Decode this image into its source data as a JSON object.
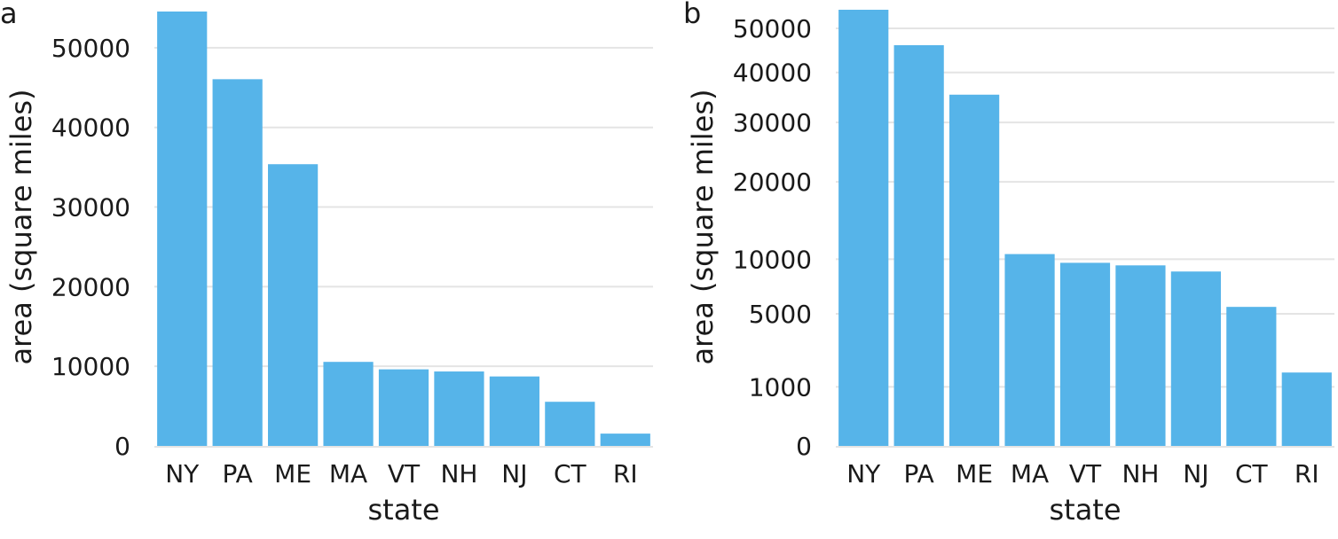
{
  "chart_data": [
    {
      "type": "bar",
      "panel_label": "a",
      "scale": "linear",
      "title": "",
      "xlabel": "state",
      "ylabel": "area (square miles)",
      "categories": [
        "NY",
        "PA",
        "ME",
        "MA",
        "VT",
        "NH",
        "NJ",
        "CT",
        "RI"
      ],
      "values": [
        54555,
        46054,
        35380,
        10554,
        9616,
        9349,
        8723,
        5543,
        1545
      ],
      "yticks": [
        0,
        10000,
        20000,
        30000,
        40000,
        50000
      ],
      "ylim": [
        0,
        55000
      ],
      "color": "#56B4E9",
      "grid": true
    },
    {
      "type": "bar",
      "panel_label": "b",
      "scale": "sqrt",
      "title": "",
      "xlabel": "state",
      "ylabel": "area (square miles)",
      "categories": [
        "NY",
        "PA",
        "ME",
        "MA",
        "VT",
        "NH",
        "NJ",
        "CT",
        "RI"
      ],
      "values": [
        54555,
        46054,
        35380,
        10554,
        9616,
        9349,
        8723,
        5543,
        1545
      ],
      "yticks": [
        0,
        1000,
        5000,
        10000,
        20000,
        30000,
        40000,
        50000
      ],
      "ylim": [
        0,
        55000
      ],
      "color": "#56B4E9",
      "grid": true
    }
  ]
}
